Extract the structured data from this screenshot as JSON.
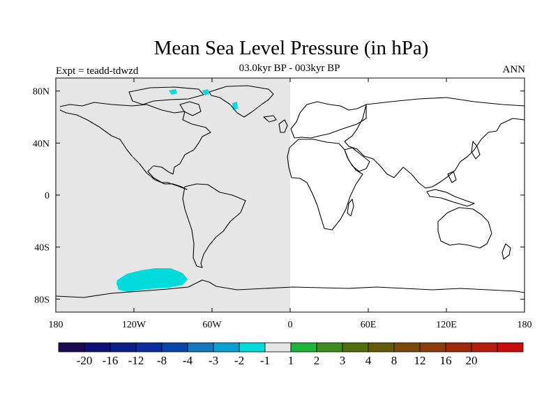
{
  "title": "Mean Sea Level Pressure (in hPa)",
  "experiment": "Expt = teadd-tdwzd",
  "period": "03.0kyr BP - 003kyr BP",
  "season": "ANN",
  "map": {
    "lon_range": [
      -180,
      180
    ],
    "lat_range": [
      -90,
      90
    ],
    "x_ticks": [
      {
        "value": -180,
        "label": "180"
      },
      {
        "value": -120,
        "label": "120W"
      },
      {
        "value": -60,
        "label": "60W"
      },
      {
        "value": 0,
        "label": "0"
      },
      {
        "value": 60,
        "label": "60E"
      },
      {
        "value": 120,
        "label": "120E"
      },
      {
        "value": 180,
        "label": "180"
      }
    ],
    "y_ticks": [
      {
        "value": 80,
        "label": "80N"
      },
      {
        "value": 40,
        "label": "40N"
      },
      {
        "value": 0,
        "label": "0"
      },
      {
        "value": -40,
        "label": "40S"
      },
      {
        "value": -80,
        "label": "80S"
      }
    ],
    "fields": [
      {
        "region": "western-hemisphere",
        "lon": [
          -180,
          0
        ],
        "lat": [
          -90,
          90
        ],
        "color": "#e6e6e6",
        "level": "-1 to 1"
      },
      {
        "region": "southern-ocean-anomaly",
        "color": "#00dcdc",
        "level": "-2 to -1"
      },
      {
        "region": "greenland-anomaly",
        "color": "#00dcdc",
        "level": "-2 to -1"
      }
    ]
  },
  "colorbar": {
    "colors": [
      "#1e0a50",
      "#0f0f78",
      "#0a1e8c",
      "#0a2da0",
      "#0a46aa",
      "#1478be",
      "#0aa0d2",
      "#00dcdc",
      "#e6e6e6",
      "#1eb43c",
      "#3c8c1e",
      "#506e0a",
      "#645a0a",
      "#784b0a",
      "#8c3c0a",
      "#a0280a",
      "#b41e0a",
      "#c80a0a"
    ],
    "labels": [
      "-20",
      "-16",
      "-12",
      "-8",
      "-4",
      "-3",
      "-2",
      "-1",
      "1",
      "2",
      "3",
      "4",
      "8",
      "12",
      "16",
      "20"
    ]
  }
}
